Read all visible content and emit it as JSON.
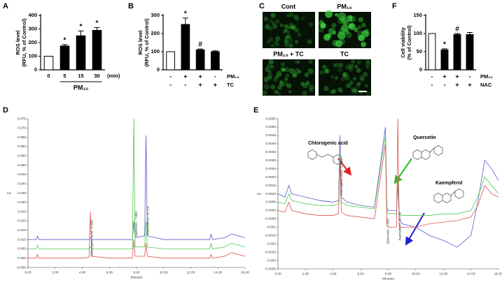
{
  "chart_data": [
    {
      "type": "bar",
      "panel": "A",
      "ylabel": [
        "ROS level",
        "(RFU, % of Control)"
      ],
      "categories": [
        "0",
        "5",
        "15",
        "30"
      ],
      "xlabel": "PM₁₀",
      "x_unit": "(min)",
      "values": [
        100,
        175,
        250,
        290
      ],
      "errors": [
        0,
        10,
        35,
        20
      ],
      "colors": [
        "#ffffff",
        "#000000",
        "#000000",
        "#000000"
      ],
      "annotations": [
        null,
        "*",
        "*",
        "*"
      ],
      "ylim": [
        0,
        400
      ],
      "yticks": [
        0,
        100,
        200,
        300,
        400
      ]
    },
    {
      "type": "bar",
      "panel": "B",
      "ylabel": [
        "ROS level",
        "(RFU, % of Control)"
      ],
      "values": [
        100,
        250,
        110,
        100
      ],
      "errors": [
        0,
        35,
        5,
        5
      ],
      "colors": [
        "#ffffff",
        "#000000",
        "#000000",
        "#000000"
      ],
      "annotations": [
        null,
        "*",
        "#",
        null
      ],
      "conditions": [
        {
          "name": "PM₁₀",
          "values": [
            "-",
            "+",
            "+",
            "-"
          ]
        },
        {
          "name": "TC",
          "values": [
            "-",
            "-",
            "+",
            "+"
          ]
        }
      ],
      "ylim": [
        0,
        300
      ],
      "yticks": [
        0,
        100,
        200,
        300
      ]
    },
    {
      "type": "image-grid",
      "panel": "C",
      "labels": [
        "Cont",
        "PM₁₀",
        "PM₁₀ + TC",
        "TC"
      ]
    },
    {
      "type": "bar",
      "panel": "F",
      "ylabel": [
        "Cell viability",
        "(% of Control)"
      ],
      "values": [
        100,
        55,
        97,
        97
      ],
      "errors": [
        0,
        3,
        3,
        6
      ],
      "colors": [
        "#ffffff",
        "#000000",
        "#000000",
        "#000000"
      ],
      "annotations": [
        null,
        "*",
        "#",
        null
      ],
      "conditions": [
        {
          "name": "PM₁₀",
          "values": [
            "-",
            "+",
            "+",
            "-"
          ]
        },
        {
          "name": "NAC",
          "values": [
            "-",
            "-",
            "+",
            "+"
          ]
        }
      ],
      "ylim": [
        0,
        150
      ],
      "yticks": [
        0,
        50,
        100,
        150
      ]
    },
    {
      "type": "line",
      "panel": "D",
      "ylabel": "AU",
      "xlabel": "Minutes",
      "annotations": [
        "Chlorogenic acid - 4.596",
        "Quercetin - 7.851",
        "Kaempferol - 8.724"
      ],
      "x": [
        0,
        0.6,
        0.7,
        0.8,
        2,
        4,
        4.5,
        4.6,
        4.7,
        6,
        7.7,
        7.8,
        7.9,
        8.6,
        8.7,
        8.8,
        10,
        13.4,
        13.5,
        13.6,
        14.5,
        15,
        16
      ],
      "series": [
        {
          "color": "#5a5ad0",
          "values": [
            0.01,
            0.01,
            0.012,
            0.01,
            0.01,
            0.01,
            0.01,
            0.011,
            0.01,
            0.01,
            0.01,
            0.02,
            0.011,
            0.012,
            0.066,
            0.012,
            0.01,
            0.01,
            0.013,
            0.01,
            0.011,
            0.013,
            0.011
          ]
        },
        {
          "color": "#4ccc4c",
          "values": [
            0.005,
            0.005,
            0.007,
            0.005,
            0.005,
            0.005,
            0.005,
            0.006,
            0.005,
            0.005,
            0.005,
            0.075,
            0.006,
            0.006,
            0.02,
            0.006,
            0.005,
            0.005,
            0.008,
            0.005,
            0.006,
            0.008,
            0.006
          ]
        },
        {
          "color": "#e05050",
          "values": [
            0,
            0,
            0.002,
            0,
            0,
            0,
            0.0005,
            0.025,
            0.001,
            0,
            0,
            0.01,
            0.001,
            0.001,
            0.008,
            0.001,
            0,
            0,
            0.002,
            0,
            0.001,
            0.003,
            0.001
          ]
        }
      ],
      "xlim": [
        0,
        16
      ],
      "xticks": [
        {
          "value": 0,
          "label": "0.00"
        },
        {
          "value": 2,
          "label": "2.00"
        },
        {
          "value": 4,
          "label": "4.00"
        },
        {
          "value": 6,
          "label": "6.00"
        },
        {
          "value": 8,
          "label": "8.00"
        },
        {
          "value": 10,
          "label": "10.00"
        },
        {
          "value": 12,
          "label": "12.00"
        },
        {
          "value": 14,
          "label": "14.00"
        },
        {
          "value": 16,
          "label": "16.00"
        }
      ],
      "ylim": [
        -0.005,
        0.075
      ],
      "yticks": [
        -0.005,
        {
          "value": 0,
          "label": "0.000"
        },
        0.005,
        {
          "value": 0.01,
          "label": "0.010"
        },
        0.015,
        {
          "value": 0.02,
          "label": "0.020"
        },
        0.025,
        {
          "value": 0.03,
          "label": "0.030"
        },
        0.035,
        {
          "value": 0.04,
          "label": "0.040"
        },
        0.045,
        {
          "value": 0.05,
          "label": "0.050"
        },
        0.055,
        {
          "value": 0.06,
          "label": "0.060"
        },
        0.065,
        {
          "value": 0.07,
          "label": "0.070"
        },
        0.075
      ]
    },
    {
      "type": "line",
      "panel": "E",
      "ylabel": "AU",
      "xlabel": "Minutes",
      "annotations": [
        "Chlorogenic acid - 4.529",
        "Quercetin - 7.897",
        "Kaempferol - 8.740"
      ],
      "compounds": [
        "Chlorogenic acid",
        "Quercetin",
        "Kaempferol"
      ],
      "x": [
        0,
        0.5,
        0.8,
        1,
        2,
        3,
        4,
        4.4,
        4.5,
        4.6,
        5,
        6,
        7,
        7.8,
        7.9,
        8,
        8.6,
        8.7,
        8.8,
        9,
        10,
        11,
        12,
        13,
        14,
        14.5,
        15,
        15.5,
        16
      ],
      "series": [
        {
          "color": "#5a5ad0",
          "values": [
            0.001,
            0.0008,
            0.0015,
            0.001,
            0.0008,
            0.0006,
            0.0005,
            0.0006,
            0.0045,
            0.0008,
            0.0005,
            0.0003,
            0.0002,
            0.005,
            0.0002,
            0,
            0,
            0.0015,
            -0.0005,
            -0.0008,
            -0.001,
            -0.0015,
            -0.0018,
            -0.0022,
            -0.0015,
            0.0005,
            0.003,
            0.0025,
            0.0018
          ]
        },
        {
          "color": "#4ccc4c",
          "values": [
            0.0005,
            0.0004,
            0.001,
            0.0006,
            0.0004,
            0.0003,
            0.0003,
            0.0004,
            0.0035,
            0.0005,
            0.0003,
            0.0002,
            0.0001,
            0.0045,
            0,
            -0.0002,
            -0.0002,
            0.002,
            -0.0002,
            -0.0003,
            -0.0003,
            -0.0003,
            -0.0002,
            -0.0002,
            0,
            0.0008,
            0.002,
            0.0015,
            0.001
          ]
        },
        {
          "color": "#e05050",
          "values": [
            0,
            -0.0001,
            0.0005,
            0,
            -0.0002,
            -0.0003,
            -0.0003,
            -0.0002,
            0.003,
            -0.0001,
            -0.0003,
            -0.0004,
            -0.0005,
            0.004,
            -0.0008,
            -0.001,
            -0.001,
            0.0055,
            -0.001,
            -0.001,
            -0.001,
            -0.0008,
            -0.0007,
            -0.0006,
            -0.0004,
            0.0003,
            0.0015,
            0.001,
            0.0008
          ]
        }
      ],
      "xlim": [
        0,
        16
      ],
      "xticks": [
        {
          "value": 0,
          "label": "0.00"
        },
        {
          "value": 2,
          "label": "2.00"
        },
        {
          "value": 4,
          "label": "4.00"
        },
        {
          "value": 6,
          "label": "6.00"
        },
        {
          "value": 8,
          "label": "8.00"
        },
        {
          "value": 10,
          "label": "10.00"
        },
        {
          "value": 12,
          "label": "12.00"
        },
        {
          "value": 14,
          "label": "14.00"
        },
        {
          "value": 16,
          "label": "16.00"
        }
      ],
      "ylim": [
        -0.0035,
        0.0055
      ],
      "yticks": [
        -0.0035,
        -0.003,
        -0.0025,
        -0.002,
        -0.0015,
        -0.001,
        -0.0005,
        {
          "value": 0,
          "label": "0.0000"
        },
        0.0005,
        {
          "value": 0.001,
          "label": "0.0010"
        },
        0.0015,
        {
          "value": 0.002,
          "label": "0.0020"
        },
        0.0025,
        {
          "value": 0.003,
          "label": "0.0030"
        },
        0.0035,
        {
          "value": 0.004,
          "label": "0.0040"
        },
        0.0045,
        {
          "value": 0.005,
          "label": "0.0050"
        },
        0.0055
      ]
    }
  ]
}
